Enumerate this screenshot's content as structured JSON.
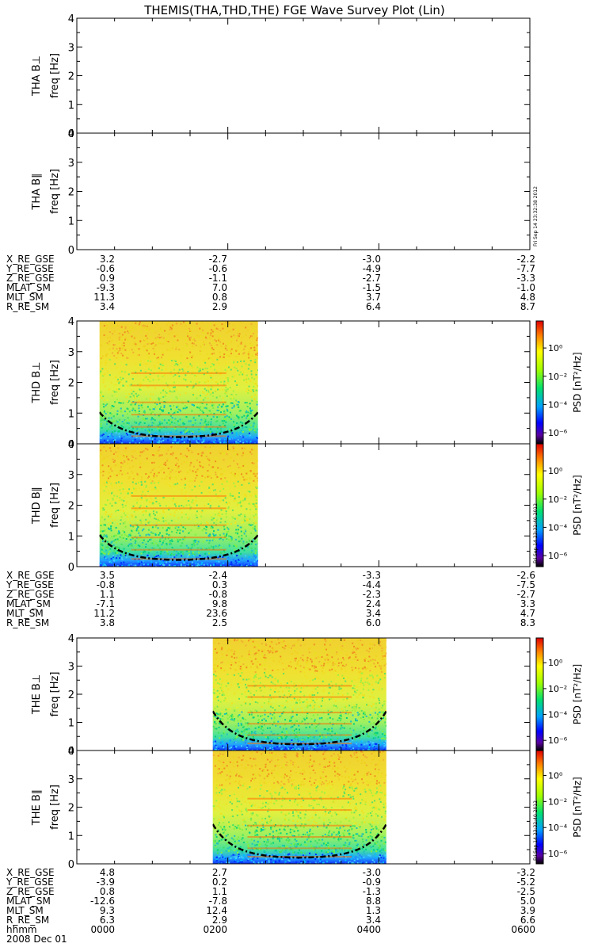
{
  "chart_data": {
    "type": "heatmap",
    "title": "THEMIS(THA,THD,THE) FGE Wave Survey Plot (Lin)",
    "x_axis": {
      "label": "hhmm",
      "date": "2008 Dec 01",
      "ticks": [
        "0000",
        "0200",
        "0400",
        "0600"
      ],
      "range_hours": [
        0,
        6
      ]
    },
    "y_axis": {
      "label": "freq [Hz]",
      "range": [
        0,
        4
      ],
      "ticks": [
        "0",
        "1",
        "2",
        "3",
        "4"
      ]
    },
    "colorbar": {
      "label": "PSD [nT²/Hz]",
      "ticks": [
        "10⁰",
        "10⁻²",
        "10⁻⁴",
        "10⁻⁶"
      ],
      "scale": "log"
    },
    "probes": [
      {
        "id": "THA",
        "panels": [
          {
            "label": "THA B⊥",
            "data_start_hours": null,
            "data_end_hours": null
          },
          {
            "label": "THA B∥",
            "data_start_hours": null,
            "data_end_hours": null
          }
        ],
        "stamp": "Fri Sep 14 23:32:38 2012",
        "ephemeris": [
          {
            "name": "X_RE_GSE",
            "values": [
              "3.2",
              "-2.7",
              "-3.0",
              "-2.2"
            ]
          },
          {
            "name": "Y_RE_GSE",
            "values": [
              "-0.6",
              "-0.6",
              "-4.9",
              "-7.7"
            ]
          },
          {
            "name": "Z_RE_GSE",
            "values": [
              "0.9",
              "-1.1",
              "-2.7",
              "-3.3"
            ]
          },
          {
            "name": "MLAT_SM",
            "values": [
              "-9.3",
              "7.0",
              "-1.5",
              "-1.0"
            ]
          },
          {
            "name": "MLT_SM",
            "values": [
              "11.3",
              "0.8",
              "3.7",
              "4.8"
            ]
          },
          {
            "name": "R_RE_SM",
            "values": [
              "3.4",
              "2.9",
              "6.4",
              "8.7"
            ]
          }
        ]
      },
      {
        "id": "THD",
        "panels": [
          {
            "label": "THD B⊥",
            "data_start_hours": 0.3,
            "data_end_hours": 2.4
          },
          {
            "label": "THD B∥",
            "data_start_hours": 0.3,
            "data_end_hours": 2.4
          }
        ],
        "stamp": "Fri Sep 14 23:32:40 2012",
        "ephemeris": [
          {
            "name": "X_RE_GSE",
            "values": [
              "3.5",
              "-2.4",
              "-3.3",
              "-2.6"
            ]
          },
          {
            "name": "Y_RE_GSE",
            "values": [
              "-0.8",
              "0.3",
              "-4.4",
              "-7.5"
            ]
          },
          {
            "name": "Z_RE_GSE",
            "values": [
              "1.1",
              "-0.8",
              "-2.3",
              "-2.7"
            ]
          },
          {
            "name": "MLAT_SM",
            "values": [
              "-7.1",
              "9.8",
              "2.4",
              "3.3"
            ]
          },
          {
            "name": "MLT_SM",
            "values": [
              "11.2",
              "23.6",
              "3.4",
              "4.7"
            ]
          },
          {
            "name": "R_RE_SM",
            "values": [
              "3.8",
              "2.5",
              "6.0",
              "8.3"
            ]
          }
        ]
      },
      {
        "id": "THE",
        "panels": [
          {
            "label": "THE B⊥",
            "data_start_hours": 1.8,
            "data_end_hours": 4.1
          },
          {
            "label": "THE B∥",
            "data_start_hours": 1.8,
            "data_end_hours": 4.1
          }
        ],
        "stamp": "Fri Sep 14 23:32:40 2012",
        "ephemeris": [
          {
            "name": "X_RE_GSE",
            "values": [
              "4.8",
              "2.7",
              "-3.0",
              "-3.2"
            ]
          },
          {
            "name": "Y_RE_GSE",
            "values": [
              "-3.9",
              "0.2",
              "-0.9",
              "-5.2"
            ]
          },
          {
            "name": "Z_RE_GSE",
            "values": [
              "0.8",
              "1.1",
              "-1.3",
              "-2.5"
            ]
          },
          {
            "name": "MLAT_SM",
            "values": [
              "-12.6",
              "-7.8",
              "8.8",
              "5.0"
            ]
          },
          {
            "name": "MLT_SM",
            "values": [
              "9.3",
              "12.4",
              "1.3",
              "3.9"
            ]
          },
          {
            "name": "R_RE_SM",
            "values": [
              "6.3",
              "2.9",
              "3.4",
              "6.6"
            ]
          }
        ]
      }
    ]
  }
}
